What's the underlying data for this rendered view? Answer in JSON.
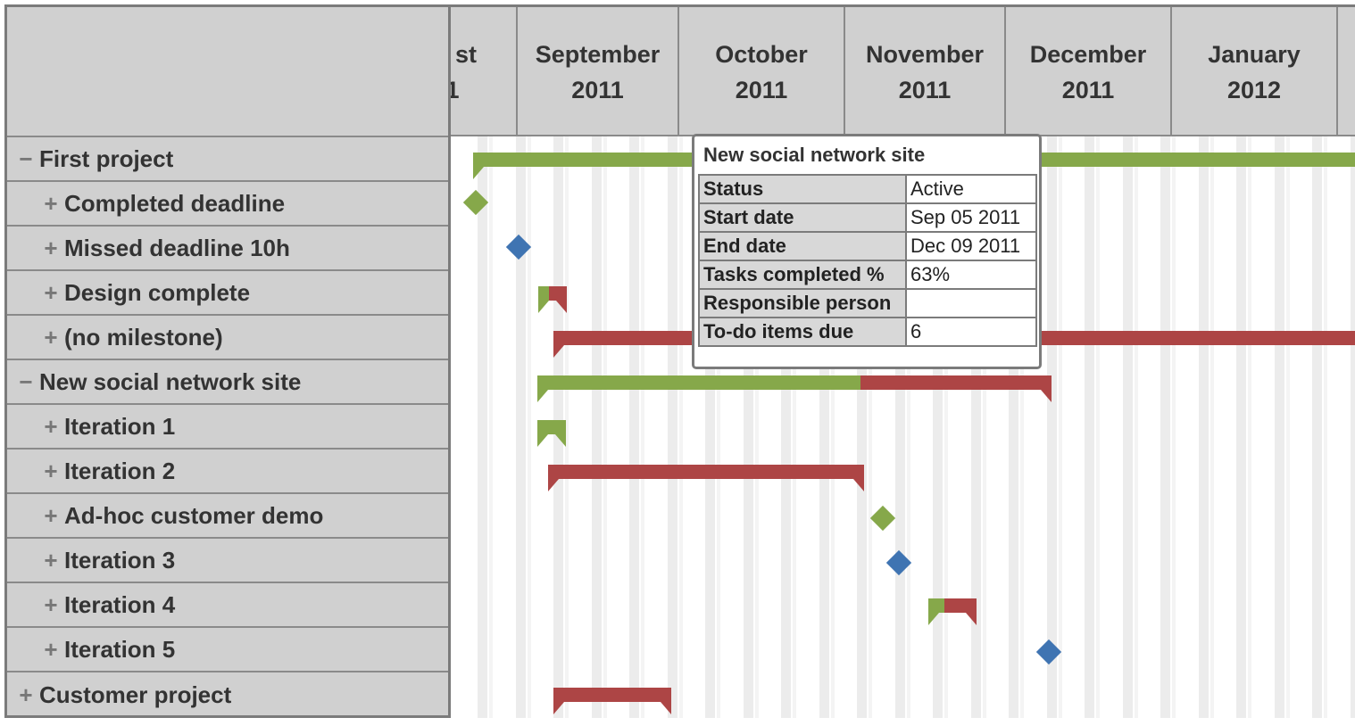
{
  "timeline": {
    "months": [
      {
        "name": "st",
        "year": "1"
      },
      {
        "name": "September",
        "year": "2011"
      },
      {
        "name": "October",
        "year": "2011"
      },
      {
        "name": "November",
        "year": "2011"
      },
      {
        "name": "December",
        "year": "2011"
      },
      {
        "name": "January",
        "year": "2012"
      }
    ]
  },
  "tasks": [
    {
      "toggle": "−",
      "label": "First project"
    },
    {
      "toggle": "+",
      "label": "Completed deadline"
    },
    {
      "toggle": "+",
      "label": "Missed deadline 10h"
    },
    {
      "toggle": "+",
      "label": "Design complete"
    },
    {
      "toggle": "+",
      "label": "(no milestone)"
    },
    {
      "toggle": "−",
      "label": "New social network site"
    },
    {
      "toggle": "+",
      "label": "Iteration 1"
    },
    {
      "toggle": "+",
      "label": "Iteration 2"
    },
    {
      "toggle": "+",
      "label": "Ad-hoc customer demo"
    },
    {
      "toggle": "+",
      "label": "Iteration 3"
    },
    {
      "toggle": "+",
      "label": "Iteration 4"
    },
    {
      "toggle": "+",
      "label": "Iteration 5"
    },
    {
      "toggle": "+",
      "label": "Customer project"
    }
  ],
  "tooltip": {
    "title": "New social network site",
    "rows": [
      {
        "key": "Status",
        "value": "Active"
      },
      {
        "key": "Start date",
        "value": "Sep 05 2011"
      },
      {
        "key": "End date",
        "value": "Dec 09 2011"
      },
      {
        "key": "Tasks completed %",
        "value": "63%"
      },
      {
        "key": "Responsible person",
        "value": ""
      },
      {
        "key": "To-do items due",
        "value": "6"
      }
    ]
  },
  "colors": {
    "complete": "#86a84a",
    "late": "#ad4545",
    "milestone_done": "#86a84a",
    "milestone_pending": "#3f74b2"
  }
}
